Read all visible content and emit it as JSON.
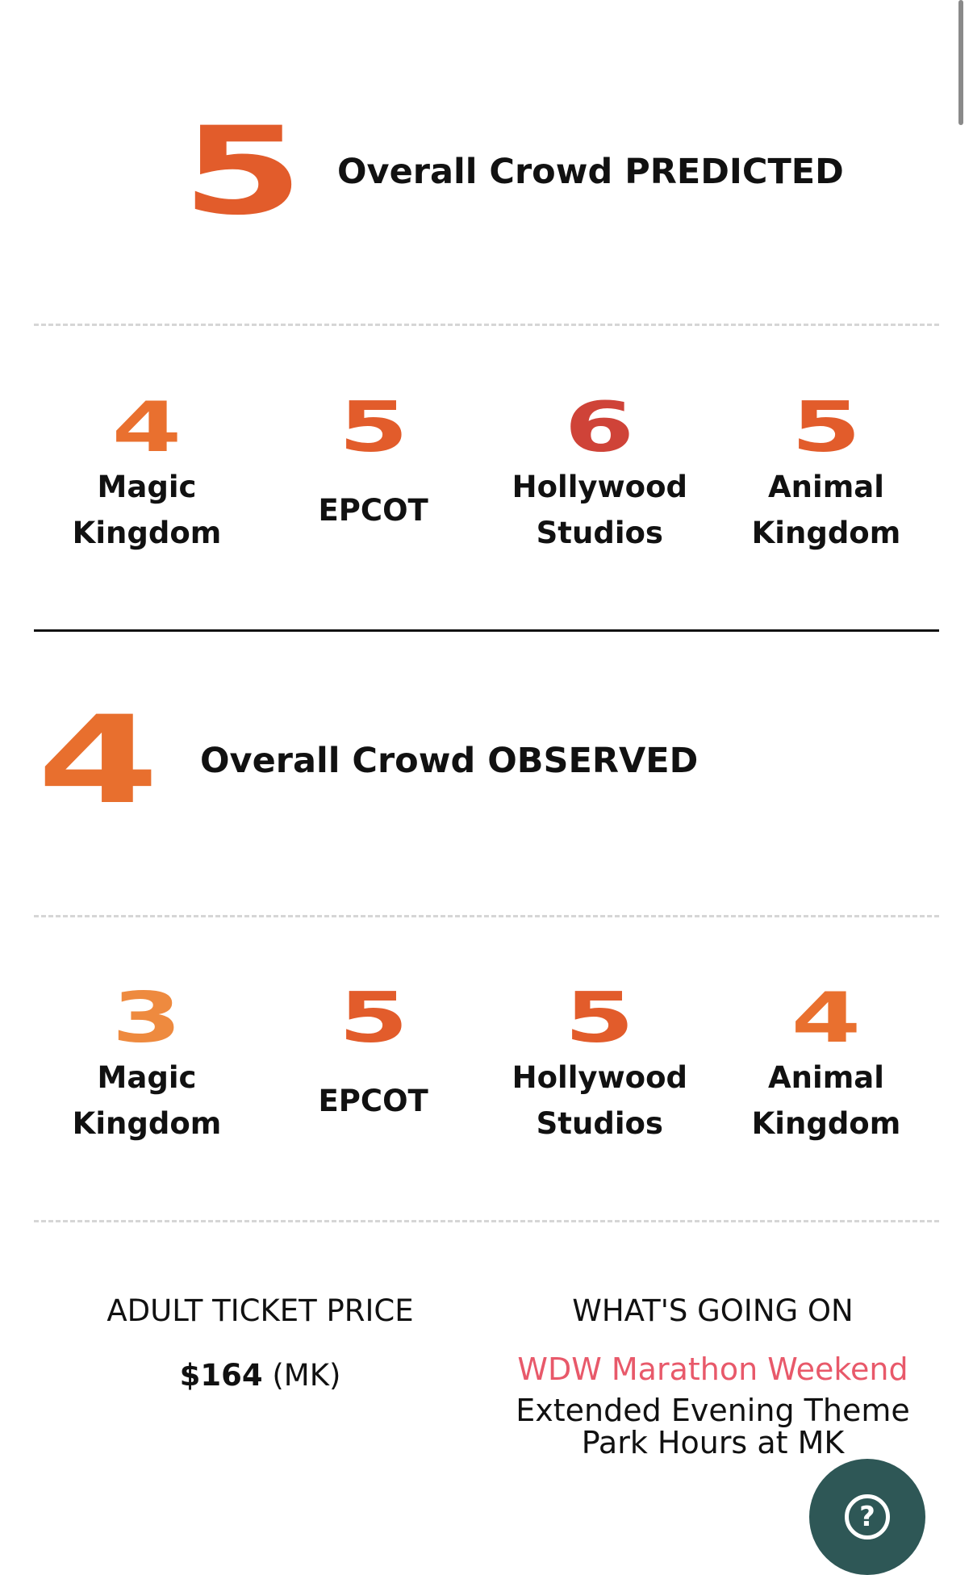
{
  "colors": {
    "orange": "#e25c2b",
    "orange_light": "#ee8a3f",
    "orange_mid": "#e86f2e",
    "red": "#cf4338",
    "link": "#e8596a",
    "help_button": "#2e5756"
  },
  "predicted": {
    "overall": "5",
    "label": "Overall Crowd PREDICTED",
    "parks": [
      {
        "score": "4",
        "name": "Magic Kingdom",
        "color": "#e9702f"
      },
      {
        "score": "5",
        "name": "EPCOT",
        "color": "#e25c2b"
      },
      {
        "score": "6",
        "name": "Hollywood Studios",
        "color": "#cf4338"
      },
      {
        "score": "5",
        "name": "Animal Kingdom",
        "color": "#e25c2b"
      }
    ]
  },
  "observed": {
    "overall": "4",
    "label": "Overall Crowd OBSERVED",
    "parks": [
      {
        "score": "3",
        "name": "Magic Kingdom",
        "color": "#ee8a3f"
      },
      {
        "score": "5",
        "name": "EPCOT",
        "color": "#e25c2b"
      },
      {
        "score": "5",
        "name": "Hollywood Studios",
        "color": "#e25c2b"
      },
      {
        "score": "4",
        "name": "Animal Kingdom",
        "color": "#e9702f"
      }
    ]
  },
  "ticket": {
    "heading": "ADULT TICKET PRICE",
    "price": "$164",
    "park": "(MK)"
  },
  "events": {
    "heading": "WHAT'S GOING ON",
    "link": "WDW Marathon Weekend",
    "text": "Extended Evening Theme Park Hours at MK"
  },
  "help": {
    "icon": "question-icon",
    "glyph": "?"
  }
}
